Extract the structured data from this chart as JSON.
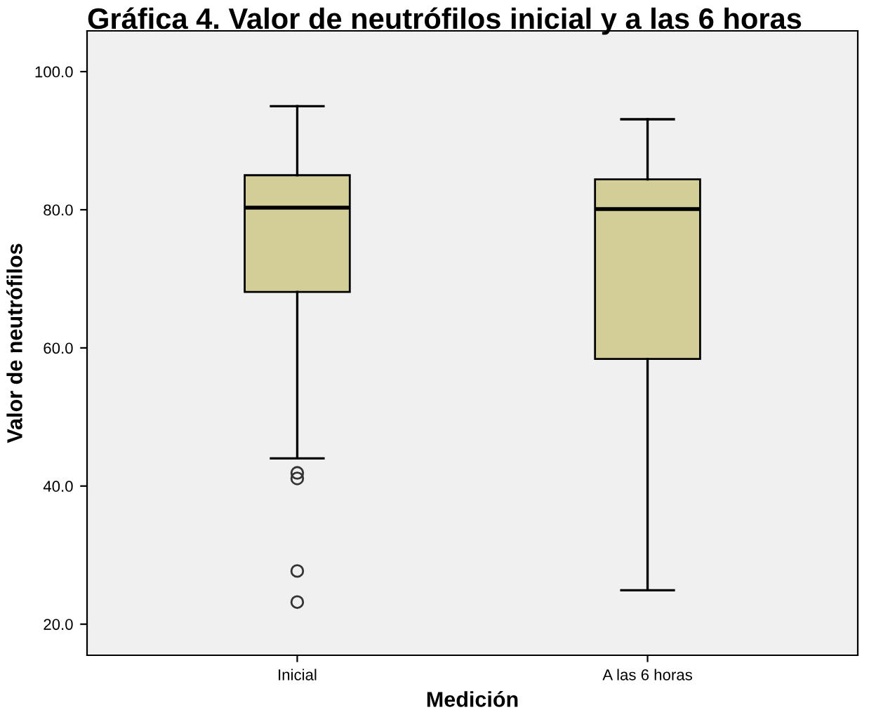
{
  "chart_data": {
    "type": "box",
    "title": "Gráfica 4. Valor de neutrófilos inicial y a las 6 horas",
    "xlabel": "Medición",
    "ylabel": "Valor de neutrófilos",
    "categories": [
      "Inicial",
      "A las 6 horas"
    ],
    "boxes": [
      {
        "low": 44,
        "q1": 68.1,
        "median": 80.3,
        "q3": 85,
        "high": 95,
        "outliers": [
          41.9,
          41.1,
          27.7,
          23.2
        ]
      },
      {
        "low": 24.9,
        "q1": 58.4,
        "median": 80.1,
        "q3": 84.4,
        "high": 93.1
      }
    ],
    "color": "#d3ce97",
    "ylim": [
      15.5,
      105.9
    ],
    "yticks": [
      {
        "value": 20,
        "label": "20.0"
      },
      {
        "value": 40,
        "label": "40.0"
      },
      {
        "value": 60,
        "label": "60.0"
      },
      {
        "value": 80,
        "label": "80.0"
      },
      {
        "value": 100,
        "label": "100.0"
      }
    ],
    "grid": false,
    "legend": false
  }
}
